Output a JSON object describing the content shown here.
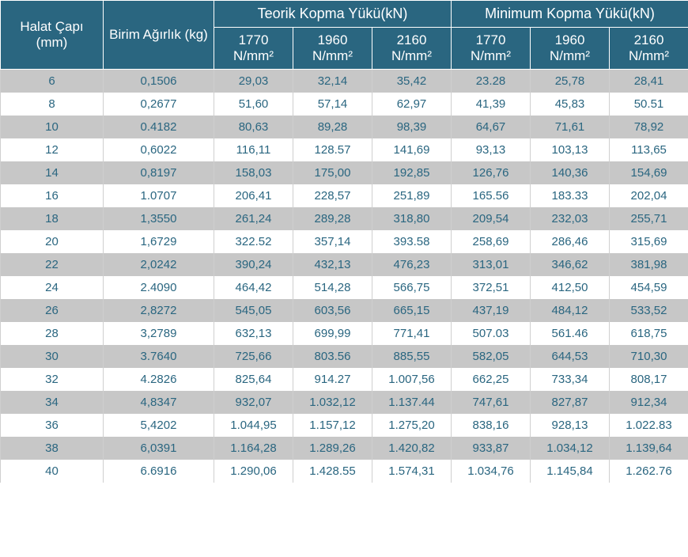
{
  "header": {
    "col0": "Halat Çapı (mm)",
    "col1": "Birim Ağırlık (kg)",
    "group1": "Teorik Kopma Yükü(kN)",
    "group2": "Minimum Kopma Yükü(kN)",
    "sub": [
      "1770 N/mm²",
      "1960 N/mm²",
      "2160 N/mm²",
      "1770 N/mm²",
      "1960 N/mm²",
      "2160 N/mm²"
    ]
  },
  "colors": {
    "header_bg": "#2a6680",
    "header_text": "#ffffff",
    "row_even_bg": "#c7c7c7",
    "row_odd_bg": "#ffffff",
    "cell_text": "#2a6680",
    "cell_border": "#cfcfcf"
  },
  "font": {
    "header_size": 17,
    "cell_size": 15,
    "family": "Arial"
  },
  "rows": [
    [
      "6",
      "0,1506",
      "29,03",
      "32,14",
      "35,42",
      "23.28",
      "25,78",
      "28,41"
    ],
    [
      "8",
      "0,2677",
      "51,60",
      "57,14",
      "62,97",
      "41,39",
      "45,83",
      "50.51"
    ],
    [
      "10",
      "0.4182",
      "80,63",
      "89,28",
      "98,39",
      "64,67",
      "71,61",
      "78,92"
    ],
    [
      "12",
      "0,6022",
      "116,11",
      "128.57",
      "141,69",
      "93,13",
      "103,13",
      "113,65"
    ],
    [
      "14",
      "0,8197",
      "158,03",
      "175,00",
      "192,85",
      "126,76",
      "140,36",
      "154,69"
    ],
    [
      "16",
      "1.0707",
      "206,41",
      "228,57",
      "251,89",
      "165.56",
      "183.33",
      "202,04"
    ],
    [
      "18",
      "1,3550",
      "261,24",
      "289,28",
      "318,80",
      "209,54",
      "232,03",
      "255,71"
    ],
    [
      "20",
      "1,6729",
      "322.52",
      "357,14",
      "393.58",
      "258,69",
      "286,46",
      "315,69"
    ],
    [
      "22",
      "2,0242",
      "390,24",
      "432,13",
      "476,23",
      "313,01",
      "346,62",
      "381,98"
    ],
    [
      "24",
      "2.4090",
      "464,42",
      "514,28",
      "566,75",
      "372,51",
      "412,50",
      "454,59"
    ],
    [
      "26",
      "2,8272",
      "545,05",
      "603,56",
      "665,15",
      "437,19",
      "484,12",
      "533,52"
    ],
    [
      "28",
      "3,2789",
      "632,13",
      "699,99",
      "771,41",
      "507.03",
      "561.46",
      "618,75"
    ],
    [
      "30",
      "3.7640",
      "725,66",
      "803.56",
      "885,55",
      "582,05",
      "644,53",
      "710,30"
    ],
    [
      "32",
      "4.2826",
      "825,64",
      "914.27",
      "1.007,56",
      "662,25",
      "733,34",
      "808,17"
    ],
    [
      "34",
      "4,8347",
      "932,07",
      "1.032,12",
      "1.137.44",
      "747,61",
      "827,87",
      "912,34"
    ],
    [
      "36",
      "5,4202",
      "1.044,95",
      "1.157,12",
      "1.275,20",
      "838,16",
      "928,13",
      "1.022.83"
    ],
    [
      "38",
      "6,0391",
      "1.164,28",
      "1.289,26",
      "1.420,82",
      "933,87",
      "1.034,12",
      "1.139,64"
    ],
    [
      "40",
      "6.6916",
      "1.290,06",
      "1.428.55",
      "1.574,31",
      "1.034,76",
      "1.145,84",
      "1.262.76"
    ]
  ]
}
